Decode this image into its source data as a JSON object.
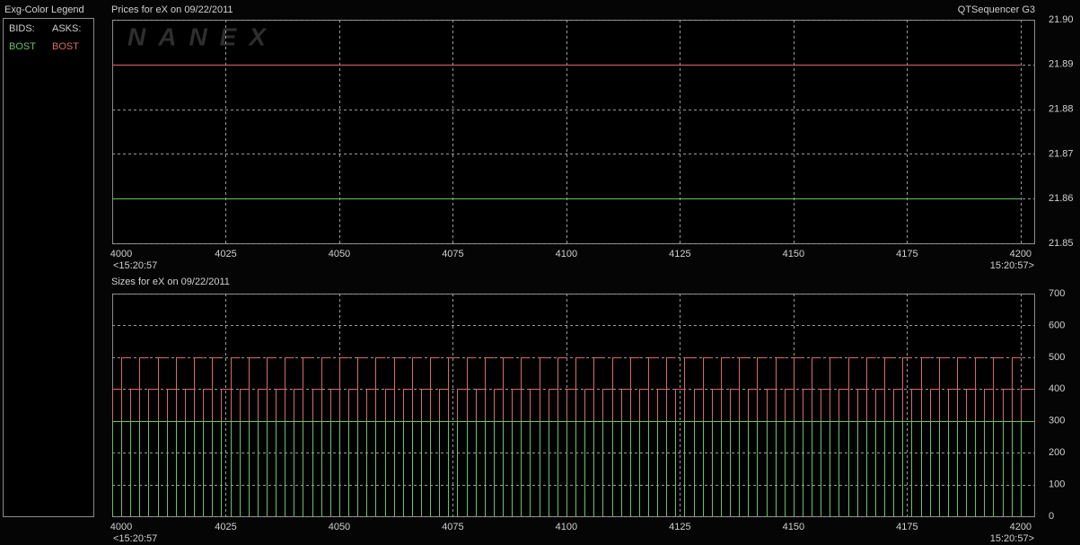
{
  "header": {
    "app_title": "QTSequencer G3",
    "watermark": "NANEX"
  },
  "legend_panel": {
    "title": "Exg-Color Legend",
    "columns": [
      "BIDS:",
      "ASKS:"
    ]
  },
  "chart_data": [
    {
      "type": "line",
      "title": "Prices for  eX  on  09/22/2011",
      "x": [
        4000,
        4200
      ],
      "series": [
        {
          "name": "BOST",
          "color": "#66c466",
          "values": [
            21.86,
            21.86
          ]
        },
        {
          "name": "BOST",
          "color": "#d86a6a",
          "values": [
            21.89,
            21.89
          ]
        }
      ],
      "xlim": [
        4000,
        4203
      ],
      "xticks": [
        4000,
        4025,
        4050,
        4075,
        4100,
        4125,
        4150,
        4175,
        4200
      ],
      "x_start_label": "<15:20:57",
      "x_end_label": "15:20:57>",
      "ylim": [
        21.85,
        21.9
      ],
      "yticks": [
        21.85,
        21.86,
        21.87,
        21.88,
        21.89,
        {
          "value": 21.9,
          "label": "21.90"
        }
      ],
      "grid": true
    },
    {
      "type": "bar",
      "title": "Sizes for  eX  on 09/22/2011",
      "x": [
        4000,
        4002,
        4004,
        4006,
        4008,
        4010,
        4012,
        4014,
        4016,
        4018,
        4020,
        4022,
        4024,
        4026,
        4028,
        4030,
        4032,
        4034,
        4036,
        4038,
        4040,
        4042,
        4044,
        4046,
        4048,
        4050,
        4052,
        4054,
        4056,
        4058,
        4060,
        4062,
        4064,
        4066,
        4068,
        4070,
        4072,
        4074,
        4076,
        4078,
        4080,
        4082,
        4084,
        4086,
        4088,
        4090,
        4092,
        4094,
        4096,
        4098,
        4100,
        4102,
        4104,
        4106,
        4108,
        4110,
        4112,
        4114,
        4116,
        4118,
        4120,
        4122,
        4124,
        4126,
        4128,
        4130,
        4132,
        4134,
        4136,
        4138,
        4140,
        4142,
        4144,
        4146,
        4148,
        4150,
        4152,
        4154,
        4156,
        4158,
        4160,
        4162,
        4164,
        4166,
        4168,
        4170,
        4172,
        4174,
        4176,
        4178,
        4180,
        4182,
        4184,
        4186,
        4188,
        4190,
        4192,
        4194,
        4196,
        4198,
        4200
      ],
      "series": [
        {
          "name": "BOST",
          "color": "#d86a6a",
          "values": [
            400,
            500,
            400,
            500,
            400,
            500,
            400,
            500,
            400,
            500,
            400,
            500,
            400,
            500,
            400,
            500,
            400,
            500,
            400,
            500,
            400,
            500,
            400,
            500,
            400,
            500,
            400,
            500,
            400,
            500,
            400,
            500,
            400,
            500,
            400,
            500,
            400,
            500,
            400,
            500,
            400,
            500,
            400,
            500,
            400,
            500,
            400,
            500,
            400,
            500,
            400,
            500,
            400,
            500,
            400,
            500,
            400,
            500,
            400,
            500,
            400,
            500,
            400,
            500,
            400,
            500,
            400,
            500,
            400,
            500,
            400,
            500,
            400,
            500,
            400,
            500,
            400,
            500,
            400,
            500,
            400,
            500,
            400,
            500,
            400,
            500,
            400,
            500,
            400,
            500,
            400,
            500,
            400,
            500,
            400,
            500,
            400,
            500,
            400,
            500,
            400
          ]
        },
        {
          "name": "BOST",
          "color": "#66c466",
          "values": [
            300,
            300,
            300,
            300,
            300,
            300,
            300,
            300,
            300,
            300,
            300,
            300,
            300,
            300,
            300,
            300,
            300,
            300,
            300,
            300,
            300,
            300,
            300,
            300,
            300,
            300,
            300,
            300,
            300,
            300,
            300,
            300,
            300,
            300,
            300,
            300,
            300,
            300,
            300,
            300,
            300,
            300,
            300,
            300,
            300,
            300,
            300,
            300,
            300,
            300,
            300,
            300,
            300,
            300,
            300,
            300,
            300,
            300,
            300,
            300,
            300,
            300,
            300,
            300,
            300,
            300,
            300,
            300,
            300,
            300,
            300,
            300,
            300,
            300,
            300,
            300,
            300,
            300,
            300,
            300,
            300,
            300,
            300,
            300,
            300,
            300,
            300,
            300,
            300,
            300,
            300,
            300,
            300,
            300,
            300,
            300,
            300,
            300,
            300,
            300,
            300
          ]
        }
      ],
      "xlim": [
        4000,
        4203
      ],
      "xticks": [
        4000,
        4025,
        4050,
        4075,
        4100,
        4125,
        4150,
        4175,
        4200
      ],
      "x_start_label": "<15:20:57",
      "x_end_label": "15:20:57>",
      "ylim": [
        0,
        700
      ],
      "yticks": [
        0,
        100,
        200,
        300,
        400,
        500,
        600,
        700
      ],
      "grid": true
    }
  ]
}
